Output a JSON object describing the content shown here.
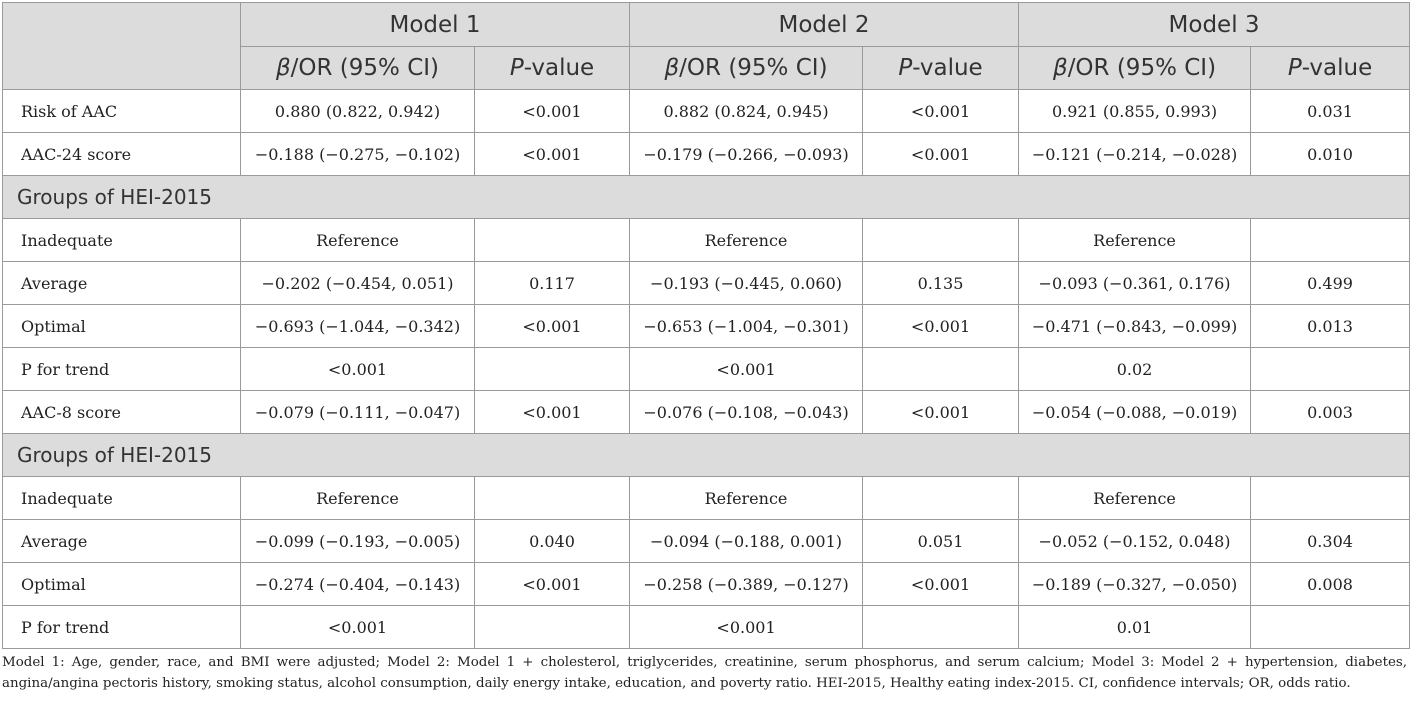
{
  "header": {
    "models": [
      "Model 1",
      "Model 2",
      "Model 3"
    ],
    "col_beta_symbol": "β",
    "col_beta_rest": "/OR (95% CI)",
    "col_p_italic": "P",
    "col_p_rest": "-value"
  },
  "rows": [
    {
      "type": "data",
      "label": "Risk of AAC",
      "values": [
        "0.880 (0.822, 0.942)",
        "<0.001",
        "0.882 (0.824, 0.945)",
        "<0.001",
        "0.921 (0.855, 0.993)",
        "0.031"
      ]
    },
    {
      "type": "data",
      "label": "AAC-24 score",
      "values": [
        "−0.188 (−0.275, −0.102)",
        "<0.001",
        "−0.179 (−0.266, −0.093)",
        "<0.001",
        "−0.121 (−0.214, −0.028)",
        "0.010"
      ]
    },
    {
      "type": "group",
      "label": "Groups of HEI-2015"
    },
    {
      "type": "data",
      "label": "Inadequate",
      "values": [
        "Reference",
        "",
        "Reference",
        "",
        "Reference",
        ""
      ]
    },
    {
      "type": "data",
      "label": "Average",
      "values": [
        "−0.202 (−0.454, 0.051)",
        "0.117",
        "−0.193 (−0.445, 0.060)",
        "0.135",
        "−0.093 (−0.361, 0.176)",
        "0.499"
      ]
    },
    {
      "type": "data",
      "label": "Optimal",
      "values": [
        "−0.693 (−1.044, −0.342)",
        "<0.001",
        "−0.653 (−1.004, −0.301)",
        "<0.001",
        "−0.471 (−0.843, −0.099)",
        "0.013"
      ]
    },
    {
      "type": "data",
      "label": "P for trend",
      "values": [
        "<0.001",
        "",
        "<0.001",
        "",
        "0.02",
        ""
      ]
    },
    {
      "type": "data",
      "label": "AAC-8 score",
      "values": [
        "−0.079 (−0.111, −0.047)",
        "<0.001",
        "−0.076 (−0.108, −0.043)",
        "<0.001",
        "−0.054 (−0.088, −0.019)",
        "0.003"
      ]
    },
    {
      "type": "group",
      "label": "Groups of HEI-2015"
    },
    {
      "type": "data",
      "label": "Inadequate",
      "values": [
        "Reference",
        "",
        "Reference",
        "",
        "Reference",
        ""
      ]
    },
    {
      "type": "data",
      "label": "Average",
      "values": [
        "−0.099 (−0.193, −0.005)",
        "0.040",
        "−0.094 (−0.188, 0.001)",
        "0.051",
        "−0.052 (−0.152, 0.048)",
        "0.304"
      ]
    },
    {
      "type": "data",
      "label": "Optimal",
      "values": [
        "−0.274 (−0.404, −0.143)",
        "<0.001",
        "−0.258 (−0.389, −0.127)",
        "<0.001",
        "−0.189 (−0.327, −0.050)",
        "0.008"
      ]
    },
    {
      "type": "data",
      "label": "P for trend",
      "values": [
        "<0.001",
        "",
        "<0.001",
        "",
        "0.01",
        ""
      ]
    }
  ],
  "footnote": "Model 1: Age, gender, race, and BMI were adjusted; Model 2: Model 1 + cholesterol, triglycerides, creatinine, serum phosphorus, and serum calcium; Model 3: Model 2 + hypertension, diabetes, angina/angina pectoris history, smoking status, alcohol consumption, daily energy intake, education, and poverty ratio. HEI-2015, Healthy eating index-2015. CI, confidence intervals; OR, odds ratio."
}
